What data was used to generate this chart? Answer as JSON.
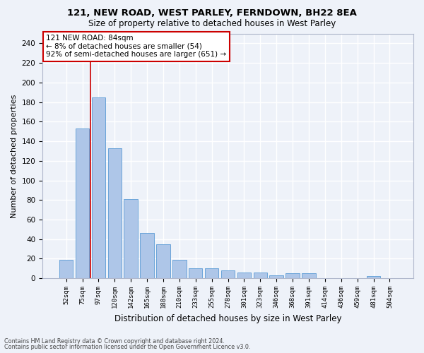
{
  "title1": "121, NEW ROAD, WEST PARLEY, FERNDOWN, BH22 8EA",
  "title2": "Size of property relative to detached houses in West Parley",
  "xlabel": "Distribution of detached houses by size in West Parley",
  "ylabel": "Number of detached properties",
  "categories": [
    "52sqm",
    "75sqm",
    "97sqm",
    "120sqm",
    "142sqm",
    "165sqm",
    "188sqm",
    "210sqm",
    "233sqm",
    "255sqm",
    "278sqm",
    "301sqm",
    "323sqm",
    "346sqm",
    "368sqm",
    "391sqm",
    "414sqm",
    "436sqm",
    "459sqm",
    "481sqm",
    "504sqm"
  ],
  "values": [
    19,
    153,
    185,
    133,
    81,
    46,
    35,
    19,
    10,
    10,
    8,
    6,
    6,
    3,
    5,
    5,
    0,
    0,
    0,
    2,
    0
  ],
  "bar_color": "#aec6e8",
  "bar_edge_color": "#5b9bd5",
  "vline_color": "#cc0000",
  "annotation_text": "121 NEW ROAD: 84sqm\n← 8% of detached houses are smaller (54)\n92% of semi-detached houses are larger (651) →",
  "annotation_box_color": "#ffffff",
  "annotation_box_edge": "#cc0000",
  "bg_color": "#eef2f9",
  "grid_color": "#ffffff",
  "footnote1": "Contains HM Land Registry data © Crown copyright and database right 2024.",
  "footnote2": "Contains public sector information licensed under the Open Government Licence v3.0.",
  "ylim": [
    0,
    250
  ],
  "yticks": [
    0,
    20,
    40,
    60,
    80,
    100,
    120,
    140,
    160,
    180,
    200,
    220,
    240
  ]
}
